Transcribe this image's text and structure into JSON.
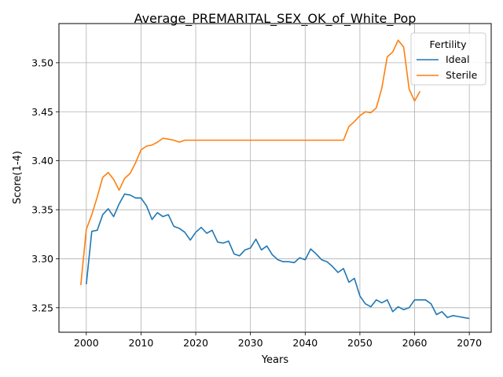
{
  "chart_data": {
    "type": "line",
    "title": "Average_PREMARITAL_SEX_OK_of_White_Pop",
    "xlabel": "Years",
    "ylabel": "Score(1-4)",
    "xlim": [
      1995,
      2074
    ],
    "ylim": [
      3.225,
      3.54
    ],
    "xticks": [
      2000,
      2010,
      2020,
      2030,
      2040,
      2050,
      2060,
      2070
    ],
    "yticks": [
      3.25,
      3.3,
      3.35,
      3.4,
      3.45,
      3.5
    ],
    "grid": true,
    "legend": {
      "title": "Fertility",
      "position": "top-right"
    },
    "series": [
      {
        "name": "Ideal",
        "color": "#1f77b4",
        "x": [
          2000,
          2001,
          2002,
          2003,
          2004,
          2005,
          2006,
          2007,
          2008,
          2009,
          2010,
          2011,
          2012,
          2013,
          2014,
          2015,
          2016,
          2017,
          2018,
          2019,
          2020,
          2021,
          2022,
          2023,
          2024,
          2025,
          2026,
          2027,
          2028,
          2029,
          2030,
          2031,
          2032,
          2033,
          2034,
          2035,
          2036,
          2037,
          2038,
          2039,
          2040,
          2041,
          2042,
          2043,
          2044,
          2045,
          2046,
          2047,
          2048,
          2049,
          2050,
          2051,
          2052,
          2053,
          2054,
          2055,
          2056,
          2057,
          2058,
          2059,
          2060,
          2061,
          2062,
          2063,
          2064,
          2065,
          2066,
          2067,
          2068,
          2069,
          2070
        ],
        "y": [
          3.274,
          3.328,
          3.329,
          3.345,
          3.351,
          3.343,
          3.356,
          3.366,
          3.365,
          3.362,
          3.362,
          3.354,
          3.34,
          3.347,
          3.343,
          3.345,
          3.333,
          3.331,
          3.327,
          3.319,
          3.327,
          3.332,
          3.326,
          3.329,
          3.317,
          3.316,
          3.318,
          3.305,
          3.303,
          3.309,
          3.311,
          3.32,
          3.309,
          3.313,
          3.304,
          3.299,
          3.297,
          3.297,
          3.296,
          3.301,
          3.299,
          3.31,
          3.305,
          3.299,
          3.297,
          3.292,
          3.286,
          3.29,
          3.276,
          3.28,
          3.262,
          3.254,
          3.251,
          3.258,
          3.255,
          3.258,
          3.246,
          3.251,
          3.248,
          3.25,
          3.258,
          3.258,
          3.258,
          3.254,
          3.243,
          3.246,
          3.24,
          3.242,
          3.241,
          3.24,
          3.239
        ]
      },
      {
        "name": "Sterile",
        "color": "#ff7f0e",
        "x": [
          1999,
          2000,
          2001,
          2002,
          2003,
          2004,
          2005,
          2006,
          2007,
          2008,
          2009,
          2010,
          2011,
          2012,
          2013,
          2014,
          2015,
          2016,
          2017,
          2018,
          2019,
          2020,
          2021,
          2022,
          2023,
          2024,
          2025,
          2026,
          2027,
          2028,
          2029,
          2030,
          2031,
          2032,
          2033,
          2034,
          2035,
          2036,
          2037,
          2038,
          2039,
          2040,
          2041,
          2042,
          2043,
          2044,
          2045,
          2046,
          2047,
          2048,
          2049,
          2050,
          2051,
          2052,
          2053,
          2054,
          2055,
          2056,
          2057,
          2058,
          2059,
          2060,
          2061
        ],
        "y": [
          3.273,
          3.33,
          3.345,
          3.363,
          3.383,
          3.388,
          3.381,
          3.37,
          3.382,
          3.387,
          3.398,
          3.411,
          3.415,
          3.416,
          3.419,
          3.423,
          3.422,
          3.421,
          3.419,
          3.421,
          3.421,
          3.421,
          3.421,
          3.421,
          3.421,
          3.421,
          3.421,
          3.421,
          3.421,
          3.421,
          3.421,
          3.421,
          3.421,
          3.421,
          3.421,
          3.421,
          3.421,
          3.421,
          3.421,
          3.421,
          3.421,
          3.421,
          3.421,
          3.421,
          3.421,
          3.421,
          3.421,
          3.421,
          3.421,
          3.435,
          3.44,
          3.446,
          3.45,
          3.449,
          3.454,
          3.474,
          3.506,
          3.511,
          3.523,
          3.516,
          3.473,
          3.461,
          3.471
        ]
      }
    ]
  }
}
